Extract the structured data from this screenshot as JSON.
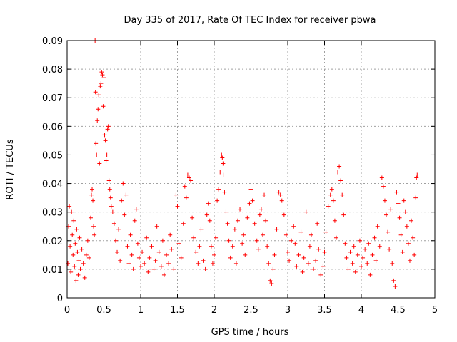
{
  "chart_data": {
    "type": "scatter",
    "title": "Day 335 of 2017, Rate Of TEC Index for receiver pbwa",
    "xlabel": "GPS time / hours",
    "ylabel": "ROTI / TECUs",
    "xlim": [
      0,
      5
    ],
    "ylim": [
      0,
      0.09
    ],
    "x_ticks": [
      "0",
      "0.5",
      "1",
      "1.5",
      "2",
      "2.5",
      "3",
      "3.5",
      "4",
      "4.5",
      "5"
    ],
    "y_ticks": [
      "0",
      "0.01",
      "0.02",
      "0.03",
      "0.04",
      "0.05",
      "0.06",
      "0.07",
      "0.08",
      "0.09"
    ],
    "grid": true,
    "marker": "+",
    "marker_color": "#ff0000",
    "series": [
      {
        "name": "ROTI",
        "points": [
          [
            0.01,
            0.012
          ],
          [
            0.02,
            0.025
          ],
          [
            0.03,
            0.032
          ],
          [
            0.04,
            0.018
          ],
          [
            0.05,
            0.009
          ],
          [
            0.06,
            0.03
          ],
          [
            0.07,
            0.022
          ],
          [
            0.08,
            0.015
          ],
          [
            0.09,
            0.027
          ],
          [
            0.1,
            0.011
          ],
          [
            0.11,
            0.019
          ],
          [
            0.12,
            0.006
          ],
          [
            0.13,
            0.024
          ],
          [
            0.14,
            0.016
          ],
          [
            0.15,
            0.008
          ],
          [
            0.16,
            0.013
          ],
          [
            0.17,
            0.021
          ],
          [
            0.18,
            0.01
          ],
          [
            0.2,
            0.017
          ],
          [
            0.22,
            0.012
          ],
          [
            0.24,
            0.007
          ],
          [
            0.26,
            0.015
          ],
          [
            0.28,
            0.02
          ],
          [
            0.3,
            0.014
          ],
          [
            0.32,
            0.028
          ],
          [
            0.33,
            0.036
          ],
          [
            0.34,
            0.038
          ],
          [
            0.35,
            0.034
          ],
          [
            0.36,
            0.025
          ],
          [
            0.37,
            0.022
          ],
          [
            0.38,
            0.09
          ],
          [
            0.385,
            0.072
          ],
          [
            0.39,
            0.054
          ],
          [
            0.4,
            0.05
          ],
          [
            0.41,
            0.062
          ],
          [
            0.42,
            0.066
          ],
          [
            0.43,
            0.071
          ],
          [
            0.44,
            0.047
          ],
          [
            0.45,
            0.074
          ],
          [
            0.46,
            0.075
          ],
          [
            0.47,
            0.079
          ],
          [
            0.48,
            0.078
          ],
          [
            0.49,
            0.067
          ],
          [
            0.5,
            0.077
          ],
          [
            0.51,
            0.057
          ],
          [
            0.52,
            0.055
          ],
          [
            0.53,
            0.048
          ],
          [
            0.54,
            0.05
          ],
          [
            0.55,
            0.059
          ],
          [
            0.56,
            0.06
          ],
          [
            0.57,
            0.041
          ],
          [
            0.58,
            0.038
          ],
          [
            0.59,
            0.035
          ],
          [
            0.6,
            0.032
          ],
          [
            0.62,
            0.03
          ],
          [
            0.64,
            0.026
          ],
          [
            0.66,
            0.02
          ],
          [
            0.68,
            0.016
          ],
          [
            0.7,
            0.024
          ],
          [
            0.72,
            0.013
          ],
          [
            0.74,
            0.034
          ],
          [
            0.76,
            0.04
          ],
          [
            0.78,
            0.029
          ],
          [
            0.8,
            0.036
          ],
          [
            0.82,
            0.018
          ],
          [
            0.84,
            0.012
          ],
          [
            0.86,
            0.022
          ],
          [
            0.88,
            0.015
          ],
          [
            0.9,
            0.01
          ],
          [
            0.92,
            0.027
          ],
          [
            0.94,
            0.031
          ],
          [
            0.96,
            0.019
          ],
          [
            0.98,
            0.014
          ],
          [
            1.0,
            0.011
          ],
          [
            1.02,
            0.016
          ],
          [
            1.05,
            0.012
          ],
          [
            1.08,
            0.021
          ],
          [
            1.1,
            0.009
          ],
          [
            1.12,
            0.014
          ],
          [
            1.15,
            0.018
          ],
          [
            1.18,
            0.01
          ],
          [
            1.2,
            0.013
          ],
          [
            1.22,
            0.025
          ],
          [
            1.25,
            0.016
          ],
          [
            1.28,
            0.011
          ],
          [
            1.3,
            0.02
          ],
          [
            1.32,
            0.008
          ],
          [
            1.35,
            0.015
          ],
          [
            1.38,
            0.012
          ],
          [
            1.4,
            0.022
          ],
          [
            1.42,
            0.017
          ],
          [
            1.45,
            0.01
          ],
          [
            1.48,
            0.036
          ],
          [
            1.5,
            0.032
          ],
          [
            1.52,
            0.019
          ],
          [
            1.55,
            0.014
          ],
          [
            1.58,
            0.026
          ],
          [
            1.6,
            0.039
          ],
          [
            1.62,
            0.035
          ],
          [
            1.64,
            0.043
          ],
          [
            1.66,
            0.042
          ],
          [
            1.68,
            0.041
          ],
          [
            1.7,
            0.028
          ],
          [
            1.72,
            0.021
          ],
          [
            1.75,
            0.016
          ],
          [
            1.78,
            0.012
          ],
          [
            1.8,
            0.018
          ],
          [
            1.82,
            0.024
          ],
          [
            1.85,
            0.013
          ],
          [
            1.88,
            0.01
          ],
          [
            1.9,
            0.029
          ],
          [
            1.92,
            0.033
          ],
          [
            1.94,
            0.027
          ],
          [
            1.96,
            0.018
          ],
          [
            1.98,
            0.012
          ],
          [
            2.0,
            0.015
          ],
          [
            2.02,
            0.021
          ],
          [
            2.04,
            0.034
          ],
          [
            2.06,
            0.038
          ],
          [
            2.08,
            0.044
          ],
          [
            2.1,
            0.05
          ],
          [
            2.11,
            0.049
          ],
          [
            2.12,
            0.047
          ],
          [
            2.13,
            0.043
          ],
          [
            2.14,
            0.037
          ],
          [
            2.16,
            0.03
          ],
          [
            2.18,
            0.026
          ],
          [
            2.2,
            0.02
          ],
          [
            2.22,
            0.014
          ],
          [
            2.25,
            0.018
          ],
          [
            2.28,
            0.024
          ],
          [
            2.3,
            0.012
          ],
          [
            2.32,
            0.027
          ],
          [
            2.35,
            0.031
          ],
          [
            2.38,
            0.019
          ],
          [
            2.4,
            0.022
          ],
          [
            2.42,
            0.015
          ],
          [
            2.45,
            0.028
          ],
          [
            2.48,
            0.033
          ],
          [
            2.5,
            0.038
          ],
          [
            2.52,
            0.034
          ],
          [
            2.55,
            0.026
          ],
          [
            2.58,
            0.02
          ],
          [
            2.6,
            0.017
          ],
          [
            2.62,
            0.029
          ],
          [
            2.64,
            0.031
          ],
          [
            2.66,
            0.022
          ],
          [
            2.68,
            0.036
          ],
          [
            2.7,
            0.027
          ],
          [
            2.72,
            0.018
          ],
          [
            2.74,
            0.012
          ],
          [
            2.76,
            0.006
          ],
          [
            2.78,
            0.005
          ],
          [
            2.8,
            0.01
          ],
          [
            2.82,
            0.015
          ],
          [
            2.85,
            0.024
          ],
          [
            2.88,
            0.037
          ],
          [
            2.9,
            0.036
          ],
          [
            2.92,
            0.034
          ],
          [
            2.95,
            0.029
          ],
          [
            2.98,
            0.022
          ],
          [
            3.0,
            0.016
          ],
          [
            3.02,
            0.013
          ],
          [
            3.05,
            0.02
          ],
          [
            3.08,
            0.025
          ],
          [
            3.1,
            0.019
          ],
          [
            3.12,
            0.011
          ],
          [
            3.15,
            0.015
          ],
          [
            3.18,
            0.023
          ],
          [
            3.2,
            0.009
          ],
          [
            3.22,
            0.014
          ],
          [
            3.25,
            0.03
          ],
          [
            3.28,
            0.012
          ],
          [
            3.3,
            0.018
          ],
          [
            3.32,
            0.022
          ],
          [
            3.35,
            0.01
          ],
          [
            3.38,
            0.013
          ],
          [
            3.4,
            0.026
          ],
          [
            3.42,
            0.017
          ],
          [
            3.45,
            0.008
          ],
          [
            3.48,
            0.011
          ],
          [
            3.5,
            0.016
          ],
          [
            3.52,
            0.023
          ],
          [
            3.55,
            0.032
          ],
          [
            3.58,
            0.036
          ],
          [
            3.6,
            0.038
          ],
          [
            3.62,
            0.034
          ],
          [
            3.64,
            0.027
          ],
          [
            3.66,
            0.021
          ],
          [
            3.68,
            0.044
          ],
          [
            3.7,
            0.046
          ],
          [
            3.72,
            0.041
          ],
          [
            3.74,
            0.036
          ],
          [
            3.76,
            0.029
          ],
          [
            3.78,
            0.019
          ],
          [
            3.8,
            0.014
          ],
          [
            3.82,
            0.01
          ],
          [
            3.85,
            0.016
          ],
          [
            3.88,
            0.012
          ],
          [
            3.9,
            0.018
          ],
          [
            3.92,
            0.009
          ],
          [
            3.95,
            0.015
          ],
          [
            3.98,
            0.02
          ],
          [
            4.0,
            0.011
          ],
          [
            4.02,
            0.014
          ],
          [
            4.05,
            0.017
          ],
          [
            4.08,
            0.012
          ],
          [
            4.1,
            0.019
          ],
          [
            4.12,
            0.008
          ],
          [
            4.15,
            0.015
          ],
          [
            4.18,
            0.021
          ],
          [
            4.2,
            0.013
          ],
          [
            4.22,
            0.025
          ],
          [
            4.25,
            0.018
          ],
          [
            4.28,
            0.042
          ],
          [
            4.3,
            0.039
          ],
          [
            4.32,
            0.034
          ],
          [
            4.34,
            0.029
          ],
          [
            4.36,
            0.023
          ],
          [
            4.38,
            0.017
          ],
          [
            4.4,
            0.031
          ],
          [
            4.42,
            0.012
          ],
          [
            4.44,
            0.006
          ],
          [
            4.46,
            0.004
          ],
          [
            4.48,
            0.037
          ],
          [
            4.5,
            0.033
          ],
          [
            4.52,
            0.028
          ],
          [
            4.54,
            0.022
          ],
          [
            4.56,
            0.016
          ],
          [
            4.58,
            0.034
          ],
          [
            4.6,
            0.03
          ],
          [
            4.62,
            0.025
          ],
          [
            4.64,
            0.019
          ],
          [
            4.66,
            0.013
          ],
          [
            4.68,
            0.027
          ],
          [
            4.7,
            0.021
          ],
          [
            4.72,
            0.015
          ],
          [
            4.74,
            0.035
          ],
          [
            4.75,
            0.042
          ],
          [
            4.76,
            0.043
          ]
        ]
      }
    ]
  }
}
